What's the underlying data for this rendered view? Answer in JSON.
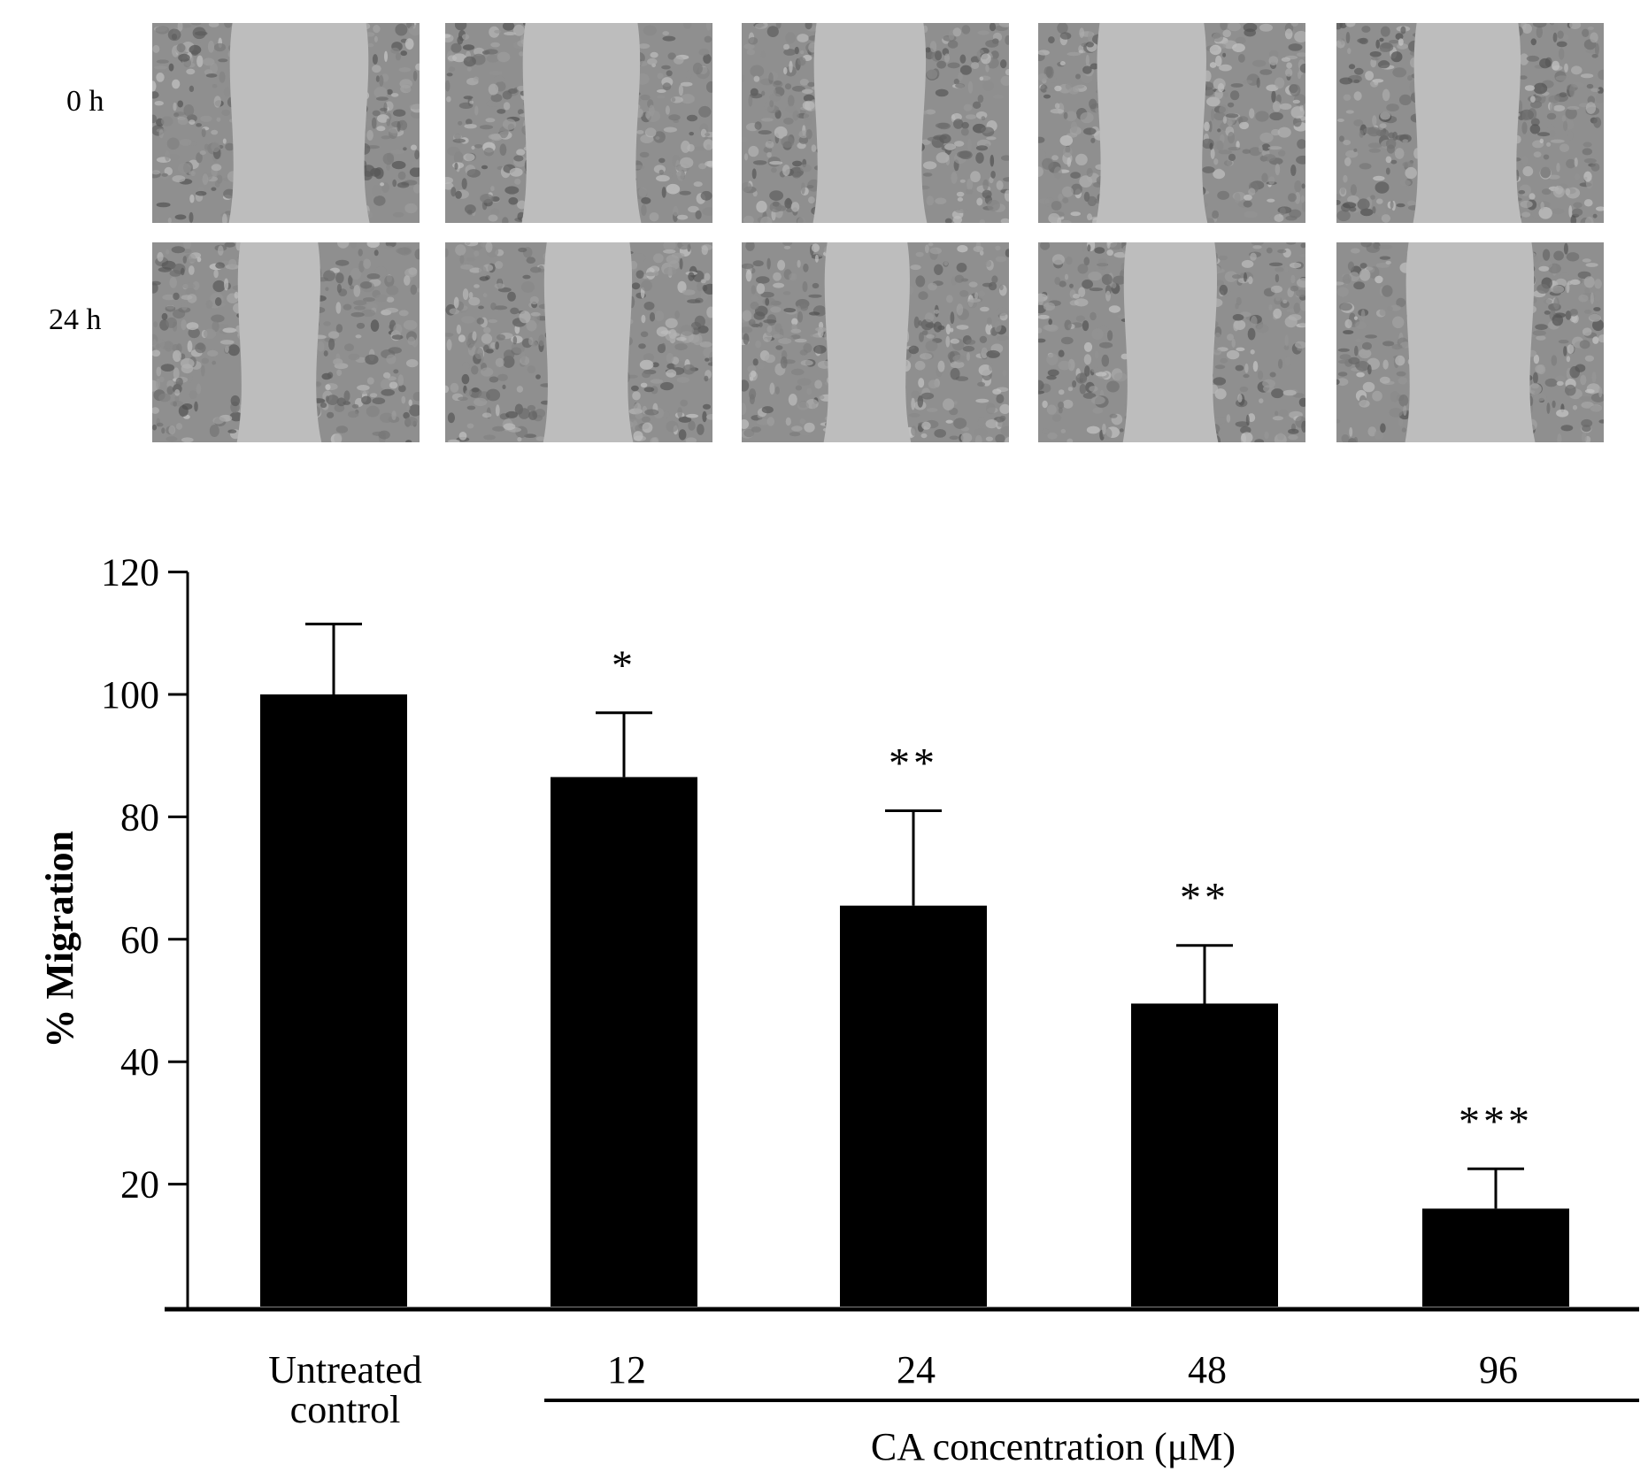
{
  "panel": {
    "row_labels": [
      "0 h",
      "24 h"
    ],
    "columns": 5
  },
  "chart_data": {
    "type": "bar",
    "categories": [
      "Untreated\ncontrol",
      "12",
      "24",
      "48",
      "96"
    ],
    "category_lines": [
      [
        "Untreated",
        "control"
      ],
      [
        "12"
      ],
      [
        "24"
      ],
      [
        "48"
      ],
      [
        "96"
      ]
    ],
    "values": [
      100,
      86.5,
      65.5,
      49.5,
      16
    ],
    "errors": [
      11.5,
      10.5,
      15.5,
      9.5,
      6.5
    ],
    "significance": [
      "",
      "*",
      "**",
      "**",
      "***"
    ],
    "ylabel": "% Migration",
    "xgroup_label": "CA concentration (μM)",
    "yticks": [
      20,
      40,
      60,
      80,
      100,
      120
    ],
    "ylim": [
      0,
      120
    ],
    "bar_color": "#000000",
    "grid": false
  }
}
